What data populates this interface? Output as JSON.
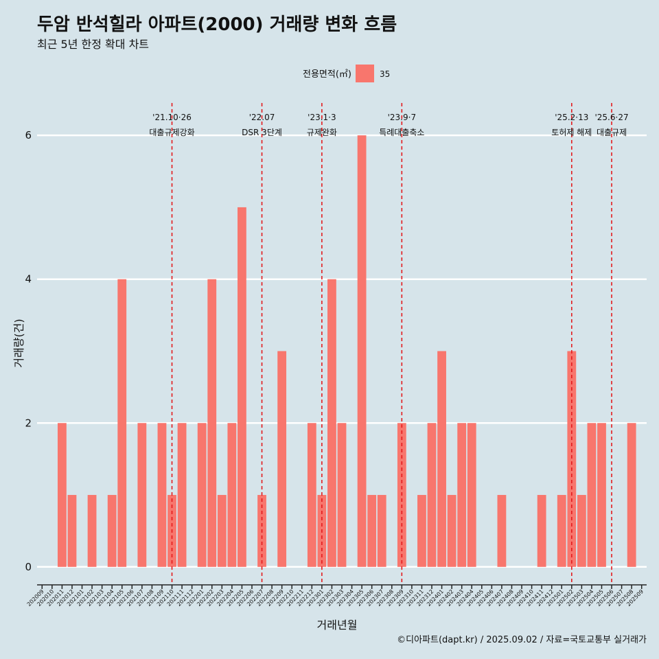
{
  "header": {
    "title": "두암 반석힐라 아파트(2000) 거래량 변화 흐름",
    "subtitle": "최근 5년 한정 확대 차트"
  },
  "legend": {
    "title": "전용면적(㎡)",
    "entries": [
      {
        "label": "35",
        "color": "#f8766d"
      }
    ]
  },
  "caption": "©디아파트(dapt.kr) / 2025.09.02 / 자료=국토교통부 실거래가",
  "colors": {
    "background": "#d6e4ea",
    "bar": "#f8766d",
    "gridline": "#ffffff",
    "event_line": "#e31a1c"
  },
  "chart_data": {
    "type": "bar",
    "xlabel": "거래년월",
    "ylabel": "거래량(건)",
    "ylim": [
      -0.25,
      6.45
    ],
    "yticks": [
      0,
      2,
      4,
      6
    ],
    "grid": true,
    "legend_position": "top",
    "categories": [
      "202009",
      "202010",
      "202011",
      "202012",
      "202101",
      "202102",
      "202103",
      "202104",
      "202105",
      "202106",
      "202107",
      "202108",
      "202109",
      "202110",
      "202111",
      "202112",
      "202201",
      "202202",
      "202203",
      "202204",
      "202205",
      "202206",
      "202207",
      "202208",
      "202209",
      "202210",
      "202211",
      "202212",
      "202301",
      "202302",
      "202303",
      "202304",
      "202305",
      "202306",
      "202307",
      "202308",
      "202309",
      "202310",
      "202311",
      "202312",
      "202401",
      "202402",
      "202403",
      "202404",
      "202405",
      "202406",
      "202407",
      "202408",
      "202409",
      "202410",
      "202411",
      "202412",
      "202501",
      "202502",
      "202503",
      "202504",
      "202505",
      "202506",
      "202507",
      "202508",
      "202509"
    ],
    "series": [
      {
        "name": "35",
        "values": [
          0,
          0,
          2,
          1,
          0,
          1,
          0,
          1,
          4,
          0,
          2,
          0,
          2,
          1,
          2,
          0,
          2,
          4,
          1,
          2,
          5,
          0,
          1,
          0,
          3,
          0,
          0,
          2,
          1,
          4,
          2,
          0,
          6,
          1,
          1,
          0,
          2,
          0,
          1,
          2,
          3,
          1,
          2,
          2,
          0,
          0,
          1,
          0,
          0,
          0,
          1,
          0,
          1,
          3,
          1,
          2,
          2,
          0,
          0,
          2,
          0
        ]
      }
    ],
    "events": [
      {
        "category": "202110",
        "date": "'21.10·26",
        "label": "대출규제강화"
      },
      {
        "category": "202207",
        "date": "'22.07",
        "label": "DSR 3단계"
      },
      {
        "category": "202301",
        "date": "'23.1·3",
        "label": "규제완화"
      },
      {
        "category": "202309",
        "date": "'23.9·7",
        "label": "특례대출축소"
      },
      {
        "category": "202502",
        "date": "'25.2·13",
        "label": "토허제 해제"
      },
      {
        "category": "202506",
        "date": "'25.6·27",
        "label": "대출규제"
      }
    ]
  }
}
